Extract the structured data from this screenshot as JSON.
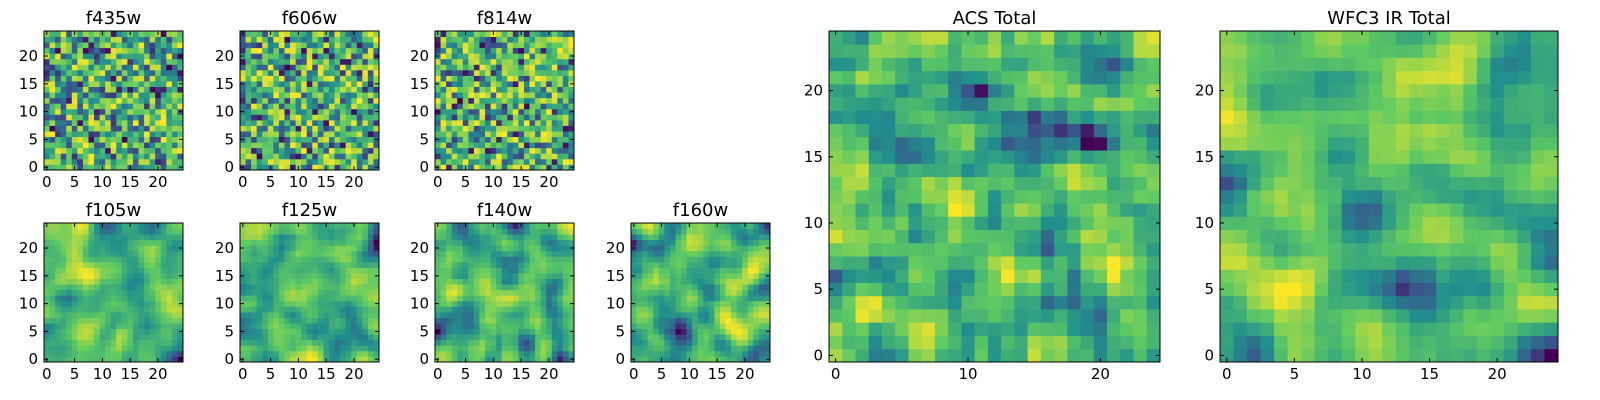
{
  "figure": {
    "colormap": "viridis",
    "colors": [
      "#440154",
      "#3b528b",
      "#21908d",
      "#5dc963",
      "#fde725"
    ]
  },
  "chart_data": [
    {
      "type": "heatmap",
      "title": "f435w",
      "grid": [
        25,
        25
      ],
      "xlim": [
        0,
        25
      ],
      "ylim": [
        0,
        25
      ],
      "xticks": [
        "0",
        "5",
        "10",
        "15",
        "20"
      ],
      "yticks": [
        "0",
        "5",
        "10",
        "15",
        "20"
      ],
      "texture": "noisy",
      "seed": 11,
      "value_range": [
        0,
        1
      ]
    },
    {
      "type": "heatmap",
      "title": "f606w",
      "grid": [
        25,
        25
      ],
      "xlim": [
        0,
        25
      ],
      "ylim": [
        0,
        25
      ],
      "xticks": [
        "0",
        "5",
        "10",
        "15",
        "20"
      ],
      "yticks": [
        "0",
        "5",
        "10",
        "15",
        "20"
      ],
      "texture": "noisy",
      "seed": 23,
      "value_range": [
        0,
        1
      ]
    },
    {
      "type": "heatmap",
      "title": "f814w",
      "grid": [
        25,
        25
      ],
      "xlim": [
        0,
        25
      ],
      "ylim": [
        0,
        25
      ],
      "xticks": [
        "0",
        "5",
        "10",
        "15",
        "20"
      ],
      "yticks": [
        "0",
        "5",
        "10",
        "15",
        "20"
      ],
      "texture": "noisy",
      "seed": 37,
      "value_range": [
        0,
        1
      ]
    },
    {
      "type": "heatmap",
      "title": "f105w",
      "grid": [
        25,
        25
      ],
      "xlim": [
        0,
        25
      ],
      "ylim": [
        0,
        25
      ],
      "xticks": [
        "0",
        "5",
        "10",
        "15",
        "20"
      ],
      "yticks": [
        "0",
        "5",
        "10",
        "15",
        "20"
      ],
      "texture": "smooth",
      "seed": 41,
      "value_range": [
        0,
        1
      ]
    },
    {
      "type": "heatmap",
      "title": "f125w",
      "grid": [
        25,
        25
      ],
      "xlim": [
        0,
        25
      ],
      "ylim": [
        0,
        25
      ],
      "xticks": [
        "0",
        "5",
        "10",
        "15",
        "20"
      ],
      "yticks": [
        "0",
        "5",
        "10",
        "15",
        "20"
      ],
      "texture": "smooth",
      "seed": 53,
      "value_range": [
        0,
        1
      ]
    },
    {
      "type": "heatmap",
      "title": "f140w",
      "grid": [
        25,
        25
      ],
      "xlim": [
        0,
        25
      ],
      "ylim": [
        0,
        25
      ],
      "xticks": [
        "0",
        "5",
        "10",
        "15",
        "20"
      ],
      "yticks": [
        "0",
        "5",
        "10",
        "15",
        "20"
      ],
      "texture": "smooth",
      "seed": 67,
      "value_range": [
        0,
        1
      ]
    },
    {
      "type": "heatmap",
      "title": "f160w",
      "grid": [
        25,
        25
      ],
      "xlim": [
        0,
        25
      ],
      "ylim": [
        0,
        25
      ],
      "xticks": [
        "0",
        "5",
        "10",
        "15",
        "20"
      ],
      "yticks": [
        "0",
        "5",
        "10",
        "15",
        "20"
      ],
      "texture": "smooth",
      "seed": 79,
      "value_range": [
        0,
        1
      ]
    },
    {
      "type": "heatmap",
      "title": "ACS Total",
      "grid": [
        25,
        25
      ],
      "xlim": [
        0,
        25
      ],
      "ylim": [
        0,
        25
      ],
      "xticks": [
        "0",
        "10",
        "20"
      ],
      "yticks": [
        "0",
        "5",
        "10",
        "15",
        "20"
      ],
      "texture": "medium",
      "seed": 97,
      "value_range": [
        0,
        1
      ]
    },
    {
      "type": "heatmap",
      "title": "WFC3 IR Total",
      "grid": [
        25,
        25
      ],
      "xlim": [
        0,
        25
      ],
      "ylim": [
        0,
        25
      ],
      "xticks": [
        "0",
        "5",
        "10",
        "15",
        "20"
      ],
      "yticks": [
        "0",
        "5",
        "10",
        "15",
        "20"
      ],
      "texture": "smooth",
      "seed": 131,
      "value_range": [
        0,
        1
      ]
    }
  ]
}
